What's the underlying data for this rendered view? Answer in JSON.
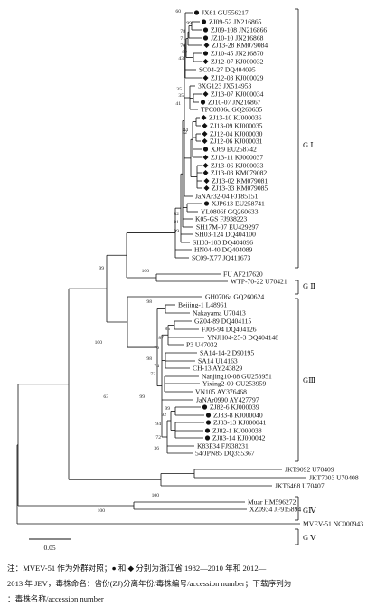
{
  "tips": [
    {
      "label": "JX61 GU556217",
      "marker": "circle"
    },
    {
      "label": "ZJ09-52 JN216865",
      "marker": "circle"
    },
    {
      "label": "ZJ09-108 JN216866",
      "marker": "circle"
    },
    {
      "label": "JZ10-10 JN216868",
      "marker": "circle"
    },
    {
      "label": "ZJ13-28 KM079084",
      "marker": "diamond"
    },
    {
      "label": "ZJ10-45 JN216870",
      "marker": "circle"
    },
    {
      "label": "ZJ12-07 KJ000032",
      "marker": "diamond"
    },
    {
      "label": "SC04-27 DQ404095",
      "marker": ""
    },
    {
      "label": "ZJ12-03 KJ000029",
      "marker": "diamond"
    },
    {
      "label": "3XG123 JX514953",
      "marker": ""
    },
    {
      "label": "ZJ13-07 KJ000034",
      "marker": "diamond"
    },
    {
      "label": "ZJ10-07 JN216867",
      "marker": "circle"
    },
    {
      "label": "TPC0806c GQ260635",
      "marker": ""
    },
    {
      "label": "ZJ13-10 KJ000036",
      "marker": "diamond"
    },
    {
      "label": "ZJ13-09 KJ000035",
      "marker": "diamond"
    },
    {
      "label": "ZJ12-04 KJ000030",
      "marker": "diamond"
    },
    {
      "label": "ZJ12-06 KJ000031",
      "marker": "diamond"
    },
    {
      "label": "XJ69 EU258742",
      "marker": "circle"
    },
    {
      "label": "ZJ13-11 KJ000037",
      "marker": "diamond"
    },
    {
      "label": "ZJ13-06 KJ000033",
      "marker": "diamond"
    },
    {
      "label": "ZJ13-03 KM079082",
      "marker": "diamond"
    },
    {
      "label": "ZJ13-02 KM079081",
      "marker": "diamond"
    },
    {
      "label": "ZJ13-33 KM079085",
      "marker": "diamond"
    },
    {
      "label": "JaNAr32-04 FJ185151",
      "marker": ""
    },
    {
      "label": "XJP613 EU258741",
      "marker": "circle"
    },
    {
      "label": "YL0806f GQ260633",
      "marker": ""
    },
    {
      "label": "K05-GS FJ938223",
      "marker": ""
    },
    {
      "label": "SH17M-07 EU429297",
      "marker": ""
    },
    {
      "label": "SH03-124 DQ404100",
      "marker": ""
    },
    {
      "label": "SH03-103 DQ404096",
      "marker": ""
    },
    {
      "label": "HN04-40 DQ404089",
      "marker": ""
    },
    {
      "label": "SC09-X77 JQ411673",
      "marker": ""
    },
    {
      "label": "FU AF217620",
      "marker": ""
    },
    {
      "label": "WTP-70-22 U70421",
      "marker": ""
    },
    {
      "label": "GH0706a GQ260624",
      "marker": ""
    },
    {
      "label": "Beijing-1 L48961",
      "marker": ""
    },
    {
      "label": "Nakayama U70413",
      "marker": ""
    },
    {
      "label": "GZ04-89 DQ404115",
      "marker": ""
    },
    {
      "label": "FJ03-94 DQ404126",
      "marker": ""
    },
    {
      "label": "YNJH04-25-3 DQ404148",
      "marker": ""
    },
    {
      "label": "P3 U47032",
      "marker": ""
    },
    {
      "label": "SA14-14-2 D90195",
      "marker": ""
    },
    {
      "label": "SA14 U14163",
      "marker": ""
    },
    {
      "label": "CH-13 AY243829",
      "marker": ""
    },
    {
      "label": "Nanjing10-08 GU253951",
      "marker": ""
    },
    {
      "label": "Yixing2-09 GU253959",
      "marker": ""
    },
    {
      "label": "VN105 AY376468",
      "marker": ""
    },
    {
      "label": "JaNAr0990 AY427797",
      "marker": ""
    },
    {
      "label": "ZJ82-6 KJ000039",
      "marker": "circle"
    },
    {
      "label": "ZJ83-8 KJ000040",
      "marker": "circle"
    },
    {
      "label": "ZJ83-13 KJ000041",
      "marker": "circle"
    },
    {
      "label": "ZJ82-1 KJ000038",
      "marker": "circle"
    },
    {
      "label": "ZJ83-14 KJ000042",
      "marker": "circle"
    },
    {
      "label": "K83P34 FJ938231",
      "marker": ""
    },
    {
      "label": "54/JPN85 DQ355367",
      "marker": ""
    },
    {
      "label": "JKT9092 U70409",
      "marker": ""
    },
    {
      "label": "JKT7003 U70408",
      "marker": ""
    },
    {
      "label": "JKT6468 U70407",
      "marker": ""
    },
    {
      "label": "Muar HM596272",
      "marker": ""
    },
    {
      "label": "XZ0934 JF915894",
      "marker": ""
    },
    {
      "label": "MVEV-51 NC000943",
      "marker": ""
    }
  ],
  "bootstrap": [
    {
      "value": "60"
    },
    {
      "value": "99"
    },
    {
      "value": "78"
    },
    {
      "value": "71"
    },
    {
      "value": "70"
    },
    {
      "value": "89"
    },
    {
      "value": "43"
    },
    {
      "value": "35"
    },
    {
      "value": "35"
    },
    {
      "value": "41"
    },
    {
      "value": "84"
    },
    {
      "value": "52"
    },
    {
      "value": "82"
    },
    {
      "value": "81"
    },
    {
      "value": "99"
    },
    {
      "value": "99"
    },
    {
      "value": "100"
    },
    {
      "value": "98"
    },
    {
      "value": "85"
    },
    {
      "value": "87"
    },
    {
      "value": "76"
    },
    {
      "value": "98"
    },
    {
      "value": "74"
    },
    {
      "value": "72"
    },
    {
      "value": "100"
    },
    {
      "value": "99"
    },
    {
      "value": "92"
    },
    {
      "value": "63"
    },
    {
      "value": "99"
    },
    {
      "value": "94"
    },
    {
      "value": "72"
    },
    {
      "value": "36"
    },
    {
      "value": "100"
    },
    {
      "value": "100"
    },
    {
      "value": "58"
    }
  ],
  "genotypes": [
    {
      "label": "G Ⅰ"
    },
    {
      "label": "G Ⅱ"
    },
    {
      "label": "GⅢ"
    },
    {
      "label": "GⅣ"
    },
    {
      "label": "G Ⅴ"
    }
  ],
  "scale_bar": {
    "value": 0.05,
    "label": "0.05"
  },
  "footnote": [
    "注：MVEV-51 作为外群对照；● 和 ◆ 分别为浙江省 1982—2010 年和 2012—",
    "2013 年 JEV，毒株命名：省份(ZJ)分离年份/毒株编号/accession number；下载序列为",
    "：毒株名称/accession number"
  ]
}
